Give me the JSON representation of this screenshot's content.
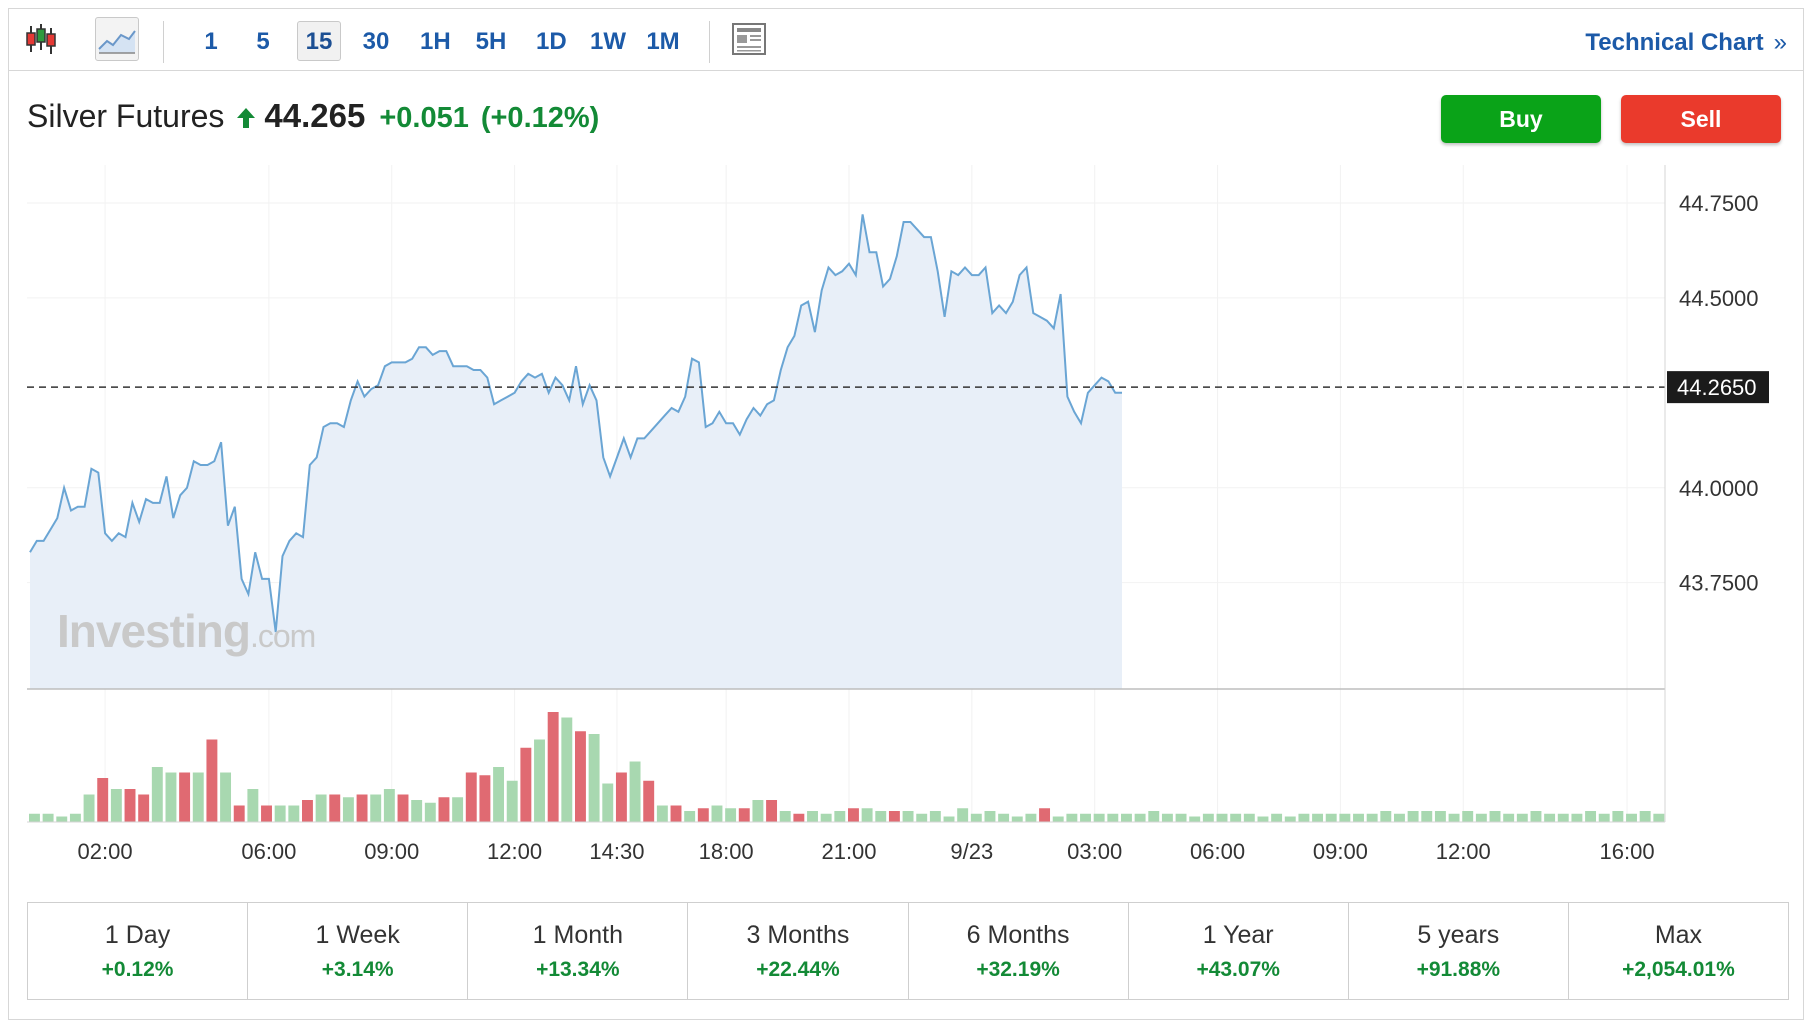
{
  "toolbar": {
    "timeframes": [
      "1",
      "5",
      "15",
      "30",
      "1H",
      "5H",
      "1D",
      "1W",
      "1M"
    ],
    "active_timeframe": "15",
    "technical_link": "Technical Chart",
    "technical_chevron": "»",
    "icons": [
      "candlestick-icon",
      "line-chart-icon",
      "news-layout-icon"
    ]
  },
  "quote": {
    "name": "Silver Futures",
    "price": "44.265",
    "change": "+0.051",
    "change_pct": "(+0.12%)",
    "direction_icon": "arrow-up-icon",
    "up_color": "#138a36"
  },
  "actions": {
    "buy": "Buy",
    "sell": "Sell",
    "buy_color": "#0aa318",
    "sell_color": "#ea3a2c"
  },
  "watermark": {
    "brand": "Investing",
    "suffix": ".com"
  },
  "periods": [
    {
      "label": "1 Day",
      "value": "+0.12%"
    },
    {
      "label": "1 Week",
      "value": "+3.14%"
    },
    {
      "label": "1 Month",
      "value": "+13.34%"
    },
    {
      "label": "3 Months",
      "value": "+22.44%"
    },
    {
      "label": "6 Months",
      "value": "+32.19%"
    },
    {
      "label": "1 Year",
      "value": "+43.07%"
    },
    {
      "label": "5 years",
      "value": "+91.88%"
    },
    {
      "label": "Max",
      "value": "+2,054.01%"
    }
  ],
  "chart_data": {
    "type": "area",
    "title": "",
    "xlabel": "",
    "ylabel": "",
    "ylim": [
      43.47,
      44.85
    ],
    "y_ticks": [
      "44.7500",
      "44.5000",
      "44.0000",
      "43.7500"
    ],
    "y_tick_values": [
      44.75,
      44.5,
      44.0,
      43.75
    ],
    "x_tick_labels": [
      "02:00",
      "06:00",
      "09:00",
      "12:00",
      "14:30",
      "18:00",
      "21:00",
      "9/23",
      "03:00",
      "06:00",
      "09:00",
      "12:00",
      "16:00"
    ],
    "x_tick_index": [
      11,
      35,
      53,
      71,
      86,
      102,
      120,
      138,
      156,
      174,
      192,
      210,
      234
    ],
    "current_price": 44.265,
    "current_price_label": "44.2650",
    "line_color": "#6aa5d4",
    "fill_color": "#e8eff8",
    "volume_up_color": "#a8d8b0",
    "volume_down_color": "#e06a72",
    "series": [
      {
        "values": [
          43.83,
          43.86,
          43.86,
          43.89,
          43.92,
          44.0,
          43.94,
          43.95,
          43.95,
          44.05,
          44.04,
          43.88,
          43.86,
          43.88,
          43.87,
          43.96,
          43.91,
          43.97,
          43.96,
          43.96,
          44.03,
          43.92,
          43.98,
          44.0,
          44.07,
          44.06,
          44.06,
          44.07,
          44.12,
          43.9,
          43.95,
          43.76,
          43.72,
          43.83,
          43.76,
          43.76,
          43.62,
          43.82,
          43.86,
          43.88,
          43.87,
          44.06,
          44.08,
          44.16,
          44.17,
          44.17,
          44.16,
          44.23,
          44.28,
          44.24,
          44.26,
          44.27,
          44.32,
          44.33,
          44.33,
          44.33,
          44.34,
          44.37,
          44.37,
          44.35,
          44.36,
          44.36,
          44.32,
          44.32,
          44.32,
          44.31,
          44.31,
          44.29,
          44.22,
          44.23,
          44.24,
          44.25,
          44.28,
          44.3,
          44.29,
          44.3,
          44.25,
          44.29,
          44.27,
          44.23,
          44.32,
          44.22,
          44.27,
          44.23,
          44.08,
          44.03,
          44.08,
          44.13,
          44.08,
          44.13,
          44.13,
          44.15,
          44.17,
          44.19,
          44.21,
          44.2,
          44.24,
          44.34,
          44.33,
          44.16,
          44.17,
          44.2,
          44.17,
          44.17,
          44.14,
          44.18,
          44.21,
          44.19,
          44.22,
          44.23,
          44.31,
          44.37,
          44.4,
          44.48,
          44.49,
          44.41,
          44.52,
          44.58,
          44.56,
          44.57,
          44.59,
          44.56,
          44.72,
          44.62,
          44.62,
          44.53,
          44.55,
          44.61,
          44.7,
          44.7,
          44.68,
          44.66,
          44.66,
          44.57,
          44.45,
          44.57,
          44.56,
          44.58,
          44.56,
          44.56,
          44.58,
          44.46,
          44.48,
          44.46,
          44.49,
          44.56,
          44.58,
          44.46,
          44.45,
          44.44,
          44.42,
          44.51,
          44.24,
          44.2,
          44.17,
          44.25,
          44.27,
          44.29,
          44.28,
          44.25,
          44.25
        ]
      }
    ],
    "volume": {
      "values": [
        3,
        3,
        2,
        3,
        10,
        16,
        12,
        12,
        10,
        20,
        18,
        18,
        18,
        30,
        18,
        6,
        12,
        6,
        6,
        6,
        8,
        10,
        10,
        9,
        10,
        10,
        12,
        10,
        8,
        7,
        9,
        9,
        18,
        17,
        20,
        15,
        27,
        30,
        40,
        38,
        33,
        32,
        14,
        18,
        22,
        15,
        6,
        6,
        4,
        5,
        6,
        5,
        5,
        8,
        8,
        4,
        3,
        4,
        3,
        4,
        5,
        5,
        4,
        4,
        4,
        3,
        4,
        2,
        5,
        3,
        4,
        3,
        2,
        3,
        5,
        2,
        3,
        3,
        3,
        3,
        3,
        3,
        4,
        3,
        3,
        2,
        3,
        3,
        3,
        3,
        2,
        3,
        2,
        3,
        3,
        3,
        3,
        3,
        3,
        4,
        3,
        4,
        4,
        4,
        3,
        4,
        3,
        4,
        3,
        3,
        4,
        3,
        3,
        3,
        4,
        3,
        4,
        3,
        4,
        3
      ],
      "colors": [
        "u",
        "u",
        "u",
        "u",
        "u",
        "d",
        "u",
        "d",
        "d",
        "u",
        "u",
        "d",
        "u",
        "d",
        "u",
        "d",
        "u",
        "d",
        "u",
        "u",
        "d",
        "u",
        "d",
        "u",
        "d",
        "u",
        "u",
        "d",
        "u",
        "u",
        "d",
        "u",
        "d",
        "d",
        "u",
        "u",
        "d",
        "u",
        "d",
        "u",
        "d",
        "u",
        "u",
        "d",
        "u",
        "d",
        "u",
        "d",
        "u",
        "d",
        "u",
        "u",
        "d",
        "u",
        "d",
        "u",
        "d",
        "u",
        "u",
        "u",
        "d",
        "u",
        "u",
        "d",
        "u",
        "u",
        "u",
        "u",
        "u",
        "u",
        "u",
        "u",
        "u",
        "u",
        "d",
        "u",
        "u",
        "u",
        "u",
        "u",
        "u",
        "u",
        "u",
        "u",
        "u",
        "u",
        "u",
        "u",
        "u",
        "u",
        "u",
        "u",
        "u",
        "u",
        "u",
        "u",
        "u",
        "u",
        "u",
        "u",
        "u",
        "u",
        "u",
        "u",
        "u",
        "u",
        "u",
        "u",
        "u",
        "u",
        "u",
        "u",
        "u",
        "u",
        "u",
        "u",
        "u",
        "u",
        "u",
        "u"
      ]
    }
  }
}
